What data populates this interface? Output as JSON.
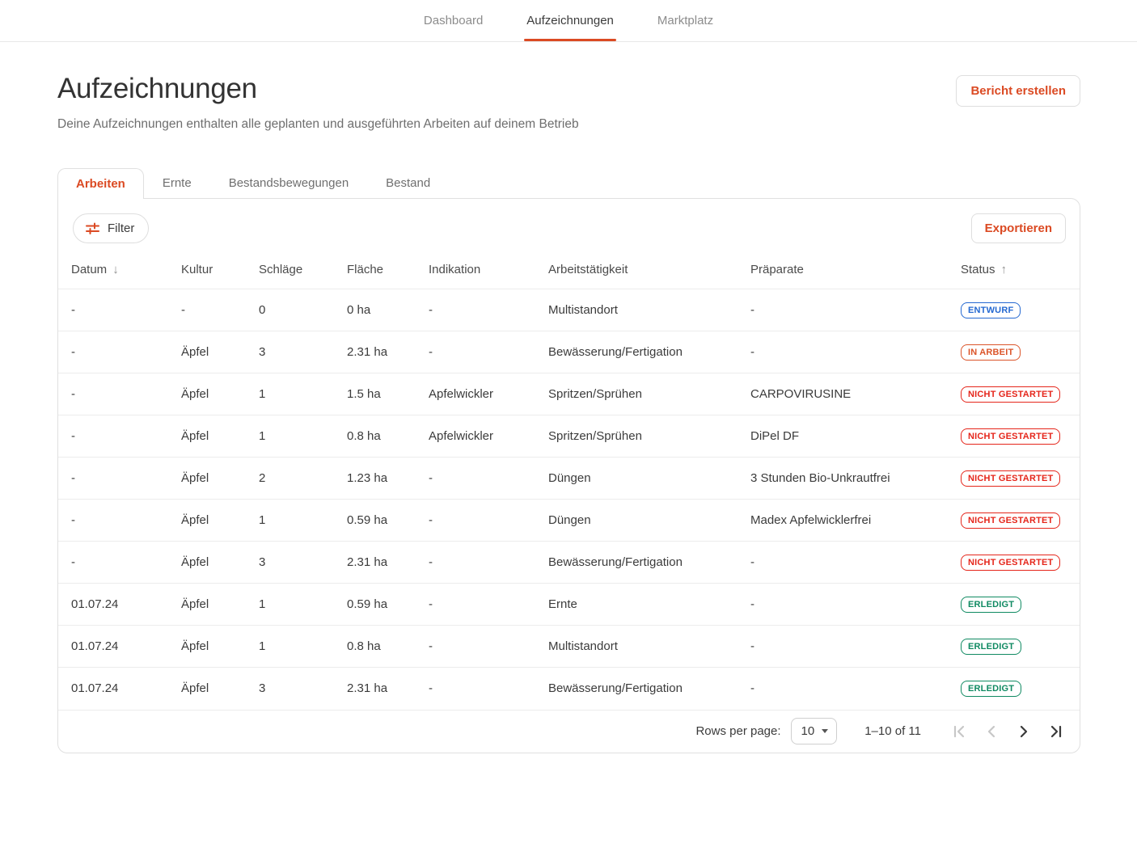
{
  "colors": {
    "accent": "#DB4A23",
    "status": {
      "ENTWURF": "#2569D1",
      "IN ARBEIT": "#DB5429",
      "NICHT GESTARTET": "#E5261B",
      "ERLEDIGT": "#108A62"
    }
  },
  "nav": {
    "items": [
      {
        "label": "Dashboard",
        "active": false
      },
      {
        "label": "Aufzeichnungen",
        "active": true
      },
      {
        "label": "Marktplatz",
        "active": false
      }
    ]
  },
  "header": {
    "title": "Aufzeichnungen",
    "subtitle": "Deine Aufzeichnungen enthalten alle geplanten und ausgeführten Arbeiten auf deinem Betrieb",
    "report_button_label": "Bericht erstellen"
  },
  "tabs": [
    {
      "label": "Arbeiten",
      "active": true
    },
    {
      "label": "Ernte",
      "active": false
    },
    {
      "label": "Bestandsbewegungen",
      "active": false
    },
    {
      "label": "Bestand",
      "active": false
    }
  ],
  "toolbar": {
    "filter_label": "Filter",
    "export_label": "Exportieren"
  },
  "icons": {
    "filter": "filter-sliders-icon",
    "sort_desc": "arrow-down-icon",
    "sort_asc": "arrow-up-icon",
    "select_caret": "chevron-down-icon"
  },
  "table": {
    "columns": [
      {
        "key": "datum",
        "label": "Datum",
        "sort": "desc"
      },
      {
        "key": "kultur",
        "label": "Kultur",
        "sort": null
      },
      {
        "key": "schlaege",
        "label": "Schläge",
        "sort": null
      },
      {
        "key": "flaeche",
        "label": "Fläche",
        "sort": null
      },
      {
        "key": "indikation",
        "label": "Indikation",
        "sort": null
      },
      {
        "key": "arbeit",
        "label": "Arbeitstätigkeit",
        "sort": null
      },
      {
        "key": "praeparate",
        "label": "Präparate",
        "sort": null
      },
      {
        "key": "status",
        "label": "Status",
        "sort": "asc"
      }
    ],
    "rows": [
      {
        "datum": "-",
        "kultur": "-",
        "schlaege": "0",
        "flaeche": "0 ha",
        "indikation": "-",
        "arbeit": "Multistandort",
        "praeparate": "-",
        "status": "ENTWURF"
      },
      {
        "datum": "-",
        "kultur": "Äpfel",
        "schlaege": "3",
        "flaeche": "2.31 ha",
        "indikation": "-",
        "arbeit": "Bewässerung/Fertigation",
        "praeparate": "-",
        "status": "IN ARBEIT"
      },
      {
        "datum": "-",
        "kultur": "Äpfel",
        "schlaege": "1",
        "flaeche": "1.5 ha",
        "indikation": "Apfelwickler",
        "arbeit": "Spritzen/Sprühen",
        "praeparate": "CARPOVIRUSINE",
        "status": "NICHT GESTARTET"
      },
      {
        "datum": "-",
        "kultur": "Äpfel",
        "schlaege": "1",
        "flaeche": "0.8 ha",
        "indikation": "Apfelwickler",
        "arbeit": "Spritzen/Sprühen",
        "praeparate": "DiPel DF",
        "status": "NICHT GESTARTET"
      },
      {
        "datum": "-",
        "kultur": "Äpfel",
        "schlaege": "2",
        "flaeche": "1.23 ha",
        "indikation": "-",
        "arbeit": "Düngen",
        "praeparate": "3 Stunden Bio-Unkrautfrei",
        "status": "NICHT GESTARTET"
      },
      {
        "datum": "-",
        "kultur": "Äpfel",
        "schlaege": "1",
        "flaeche": "0.59 ha",
        "indikation": "-",
        "arbeit": "Düngen",
        "praeparate": "Madex Apfelwicklerfrei",
        "status": "NICHT GESTARTET"
      },
      {
        "datum": "-",
        "kultur": "Äpfel",
        "schlaege": "3",
        "flaeche": "2.31 ha",
        "indikation": "-",
        "arbeit": "Bewässerung/Fertigation",
        "praeparate": "-",
        "status": "NICHT GESTARTET"
      },
      {
        "datum": "01.07.24",
        "kultur": "Äpfel",
        "schlaege": "1",
        "flaeche": "0.59 ha",
        "indikation": "-",
        "arbeit": "Ernte",
        "praeparate": "-",
        "status": "ERLEDIGT"
      },
      {
        "datum": "01.07.24",
        "kultur": "Äpfel",
        "schlaege": "1",
        "flaeche": "0.8 ha",
        "indikation": "-",
        "arbeit": "Multistandort",
        "praeparate": "-",
        "status": "ERLEDIGT"
      },
      {
        "datum": "01.07.24",
        "kultur": "Äpfel",
        "schlaege": "3",
        "flaeche": "2.31 ha",
        "indikation": "-",
        "arbeit": "Bewässerung/Fertigation",
        "praeparate": "-",
        "status": "ERLEDIGT"
      }
    ]
  },
  "pagination": {
    "rows_per_page_label": "Rows per page:",
    "rows_per_page_value": "10",
    "range": "1–10 of 11",
    "buttons": [
      {
        "name": "first-page",
        "disabled": true
      },
      {
        "name": "previous-page",
        "disabled": true
      },
      {
        "name": "next-page",
        "disabled": false
      },
      {
        "name": "last-page",
        "disabled": false
      }
    ]
  }
}
